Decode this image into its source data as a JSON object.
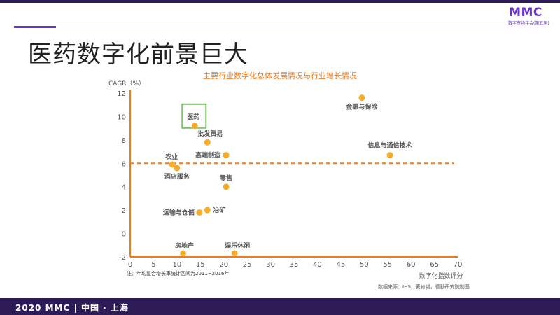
{
  "logo": {
    "mark": "MMC",
    "subtitle": "数字市场年会(第五届)"
  },
  "slide": {
    "title": "医药数字化前景巨大"
  },
  "footer": {
    "text": "2020 MMC | 中国 · 上海"
  },
  "note": "注：年均复合增长率统计区间为2011~2016年",
  "source": "数据来源：IHS，麦肯锡，德勤研究院制图",
  "colors": {
    "accent": "#6a35c9",
    "dark": "#2d1b55",
    "chart_orange": "#f07b1a",
    "point": "#f5ad2e",
    "highlight_box": "#7cc46a"
  },
  "chart_data": {
    "type": "scatter",
    "title": "主要行业数字化总体发展情况与行业增长情况",
    "xlabel": "数字化指数评分",
    "ylabel": "CAGR（%）",
    "xlim": [
      0,
      70
    ],
    "ylim": [
      -2,
      12
    ],
    "xticks": [
      0,
      5,
      10,
      15,
      20,
      25,
      30,
      35,
      40,
      45,
      50,
      55,
      60,
      65,
      70
    ],
    "yticks": [
      -2,
      0,
      2,
      4,
      6,
      8,
      10,
      12
    ],
    "grid": false,
    "reference_line": {
      "y": 6,
      "style": "dashed"
    },
    "highlight": "医药",
    "points": [
      {
        "label": "金融与保险",
        "x": 49.5,
        "y": 11.6
      },
      {
        "label": "医药",
        "x": 13.8,
        "y": 9.2
      },
      {
        "label": "批发贸易",
        "x": 16.5,
        "y": 7.8
      },
      {
        "label": "信息与通信技术",
        "x": 55.5,
        "y": 6.7
      },
      {
        "label": "高端制造",
        "x": 20.5,
        "y": 6.7
      },
      {
        "label": "农业",
        "x": 9,
        "y": 5.9
      },
      {
        "label": "酒店服务",
        "x": 10,
        "y": 5.6
      },
      {
        "label": "零售",
        "x": 20.5,
        "y": 4.0
      },
      {
        "label": "冶矿",
        "x": 16.5,
        "y": 2.0
      },
      {
        "label": "运输与仓储",
        "x": 14.8,
        "y": 1.8
      },
      {
        "label": "房地产",
        "x": 11.3,
        "y": -1.7
      },
      {
        "label": "娱乐休闲",
        "x": 22.3,
        "y": -1.7
      }
    ]
  }
}
